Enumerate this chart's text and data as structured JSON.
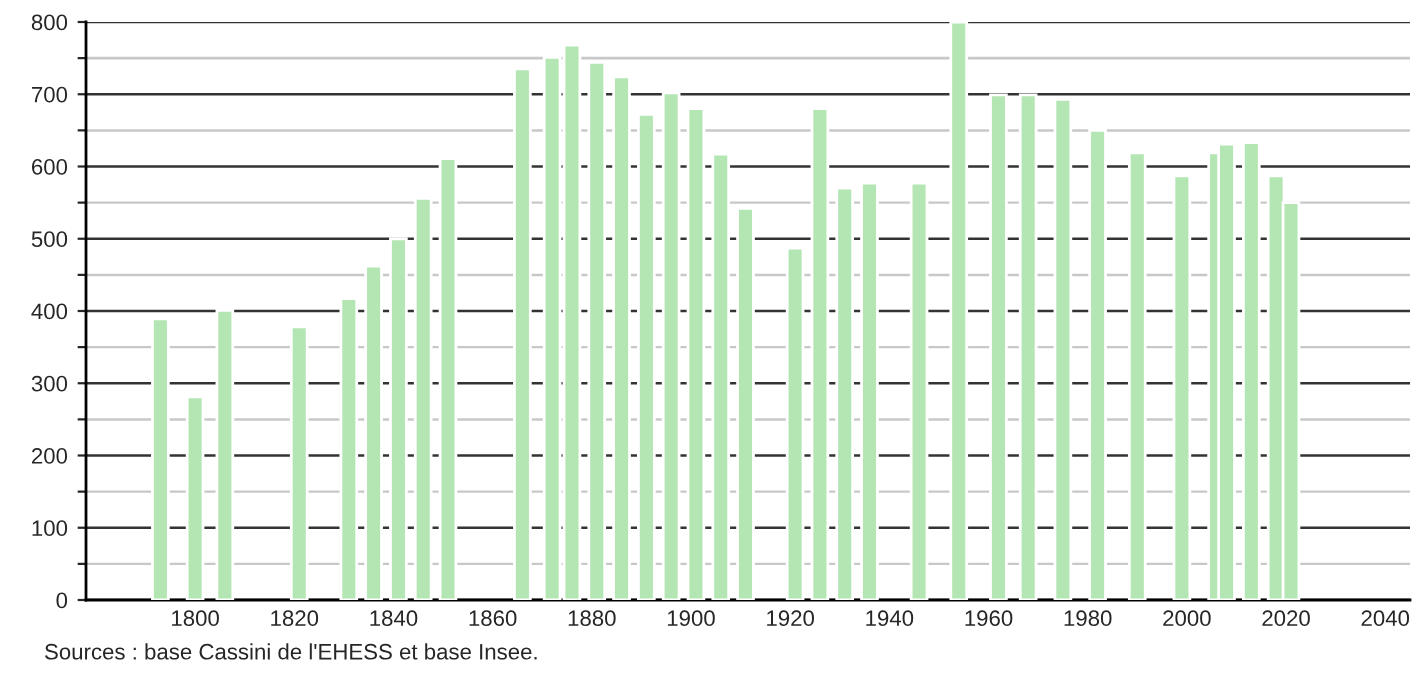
{
  "chart_data": {
    "type": "bar",
    "x": [
      1793,
      1800,
      1806,
      1821,
      1831,
      1836,
      1841,
      1846,
      1851,
      1866,
      1872,
      1876,
      1881,
      1886,
      1891,
      1896,
      1901,
      1906,
      1911,
      1921,
      1926,
      1931,
      1936,
      1946,
      1954,
      1962,
      1968,
      1975,
      1982,
      1990,
      1999,
      2006,
      2008,
      2013,
      2018,
      2021
    ],
    "values": [
      389,
      281,
      401,
      378,
      417,
      462,
      500,
      556,
      611,
      735,
      751,
      768,
      744,
      724,
      672,
      702,
      680,
      617,
      542,
      487,
      680,
      570,
      577,
      577,
      800,
      699,
      699,
      693,
      650,
      619,
      587,
      619,
      631,
      633,
      587,
      550
    ],
    "color": "#b3e6b3",
    "xlim": [
      1778,
      2045
    ],
    "xticks": [
      1800,
      1820,
      1840,
      1860,
      1880,
      1900,
      1920,
      1940,
      1960,
      1980,
      2000,
      2020,
      2040
    ],
    "ylim": [
      0,
      800
    ],
    "yticks": [
      0,
      {
        "value": 50,
        "label": null
      },
      100,
      {
        "value": 150,
        "label": null
      },
      200,
      {
        "value": 250,
        "label": null
      },
      300,
      {
        "value": 350,
        "label": null
      },
      400,
      {
        "value": 450,
        "label": null
      },
      500,
      {
        "value": 550,
        "label": null
      },
      600,
      {
        "value": 650,
        "label": null
      },
      700,
      {
        "value": 750,
        "label": null
      },
      800
    ],
    "grid": "y",
    "annotations": [
      "Sources : base Cassini de l'EHESS et base Insee."
    ]
  }
}
